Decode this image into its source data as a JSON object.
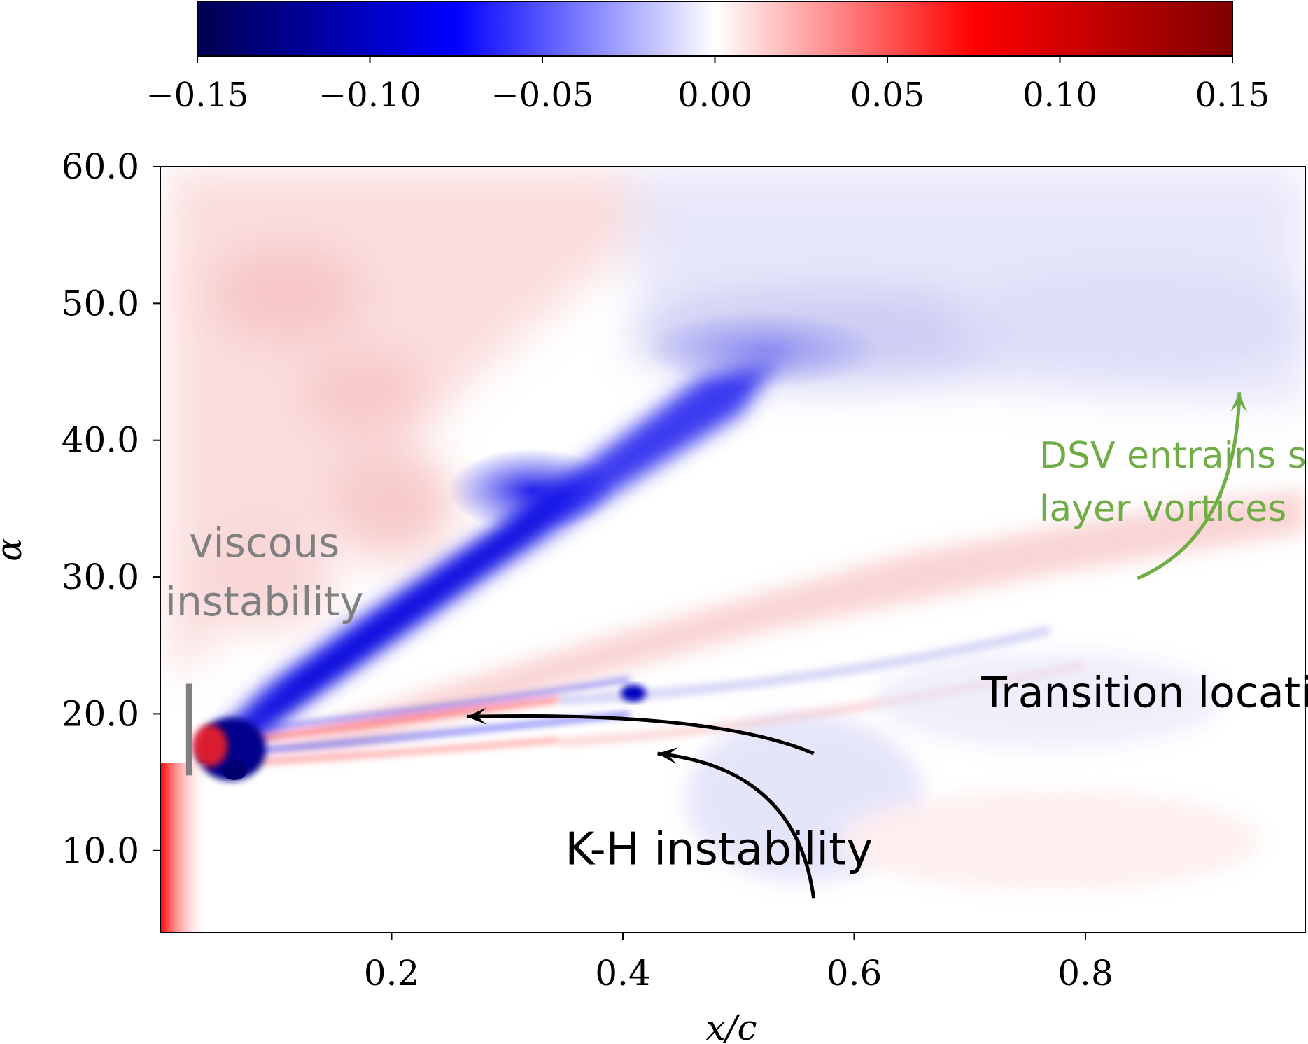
{
  "chart_data": {
    "type": "heatmap",
    "title": "",
    "xlabel": "x/c",
    "ylabel": "α",
    "xlim": [
      0.0,
      0.99
    ],
    "ylim": [
      4.0,
      60.0
    ],
    "x_ticks": [
      {
        "value": 0.2,
        "label": "0.2"
      },
      {
        "value": 0.4,
        "label": "0.4"
      },
      {
        "value": 0.6,
        "label": "0.6"
      },
      {
        "value": 0.8,
        "label": "0.8"
      }
    ],
    "y_ticks": [
      {
        "value": 10.0,
        "label": "10.0"
      },
      {
        "value": 20.0,
        "label": "20.0"
      },
      {
        "value": 30.0,
        "label": "30.0"
      },
      {
        "value": 40.0,
        "label": "40.0"
      },
      {
        "value": 50.0,
        "label": "50.0"
      },
      {
        "value": 60.0,
        "label": "60.0"
      }
    ],
    "colorbar": {
      "colormap": "seismic",
      "range": [
        -0.15,
        0.15
      ],
      "stops": [
        "#000050",
        "#0000ff",
        "#ffffff",
        "#ff0000",
        "#800000"
      ],
      "ticks": [
        {
          "value": -0.15,
          "label": "−0.15"
        },
        {
          "value": -0.1,
          "label": "−0.10"
        },
        {
          "value": -0.05,
          "label": "−0.05"
        },
        {
          "value": 0.0,
          "label": "0.00"
        },
        {
          "value": 0.05,
          "label": "0.05"
        },
        {
          "value": 0.1,
          "label": "0.10"
        },
        {
          "value": 0.15,
          "label": "0.15"
        }
      ]
    },
    "annotations": [
      {
        "id": "viscous",
        "lines": [
          "viscous",
          "instability"
        ],
        "color": "#808080",
        "x": 0.09,
        "y": 31.5
      },
      {
        "id": "transition",
        "lines": [
          "Transition location"
        ],
        "color": "#000000",
        "x": 0.71,
        "y": 20.5
      },
      {
        "id": "kh",
        "lines": [
          "K-H instability"
        ],
        "color": "#000000",
        "x": 0.35,
        "y": 9.0
      },
      {
        "id": "dsv",
        "lines": [
          "DSV entrains shear",
          "layer vortices"
        ],
        "color": "#70ad47",
        "x": 0.76,
        "y": 38.0
      }
    ],
    "marker_bar": {
      "x": 0.025,
      "y_range": [
        15.5,
        22.2
      ],
      "color": "#808080"
    },
    "arrows": [
      {
        "id": "transition-arrow",
        "from": [
          0.565,
          17.1
        ],
        "ctrl": [
          0.48,
          20.2
        ],
        "to": [
          0.265,
          19.8
        ],
        "color": "#000000"
      },
      {
        "id": "kh-arrow",
        "from": [
          0.565,
          6.5
        ],
        "ctrl": [
          0.55,
          16.0
        ],
        "to": [
          0.43,
          17.1
        ],
        "color": "#000000"
      },
      {
        "id": "dsv-arrow",
        "from": [
          0.845,
          29.9
        ],
        "ctrl": [
          0.93,
          33.0
        ],
        "to": [
          0.933,
          43.5
        ],
        "color": "#70ad47"
      }
    ]
  }
}
